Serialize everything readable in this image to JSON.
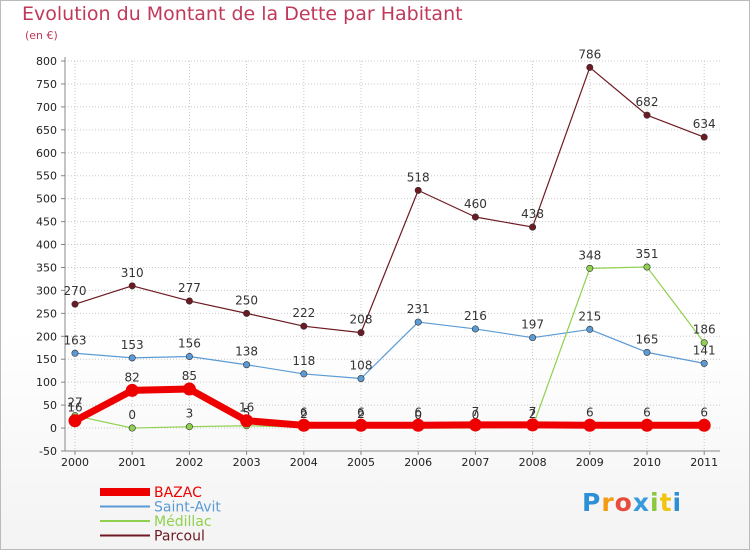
{
  "title": "Evolution du Montant de la Dette par Habitant",
  "subtitle": "(en €)",
  "logo": "Proxiti",
  "colors": {
    "title": "#c0395a",
    "grid": "#c8c8c8",
    "axis": "#888888"
  },
  "chart_data": {
    "type": "line",
    "categories": [
      "2000",
      "2001",
      "2002",
      "2003",
      "2004",
      "2005",
      "2006",
      "2007",
      "2008",
      "2009",
      "2010",
      "2011"
    ],
    "ylim": [
      -50,
      800
    ],
    "yticks": [
      -50,
      0,
      50,
      100,
      150,
      200,
      250,
      300,
      350,
      400,
      450,
      500,
      550,
      600,
      650,
      700,
      750,
      800
    ],
    "grid": true,
    "legend_position": "bottom-left",
    "series": [
      {
        "name": "Parcoul",
        "color": "#6e1a22",
        "width": 1.2,
        "values": [
          270,
          310,
          277,
          250,
          222,
          208,
          518,
          460,
          438,
          786,
          682,
          634
        ],
        "labels": [
          "270",
          "310",
          "277",
          "250",
          "222",
          "208",
          "518",
          "460",
          "438",
          "786",
          "682",
          "634"
        ]
      },
      {
        "name": "Saint-Avit",
        "color": "#5b9bd5",
        "width": 1.2,
        "values": [
          163,
          153,
          156,
          138,
          118,
          108,
          231,
          216,
          197,
          215,
          165,
          141
        ],
        "labels": [
          "163",
          "153",
          "156",
          "138",
          "118",
          "108",
          "231",
          "216",
          "197",
          "215",
          "165",
          "141"
        ]
      },
      {
        "name": "Médillac",
        "color": "#8fd14f",
        "width": 1.2,
        "values": [
          27,
          0,
          3,
          5,
          2,
          2,
          0,
          0,
          2,
          348,
          351,
          186
        ],
        "labels": [
          "27",
          "0",
          "3",
          "5",
          "2",
          "2",
          "0",
          "0",
          "2",
          "348",
          "351",
          "186"
        ]
      },
      {
        "name": "BAZAC",
        "color": "#ee0000",
        "width": 7,
        "values": [
          16,
          82,
          85,
          16,
          6,
          6,
          6,
          7,
          7,
          6,
          6,
          6
        ],
        "labels": [
          "16",
          "82",
          "85",
          "16",
          "6",
          "6",
          "6",
          "7",
          "7",
          "6",
          "6",
          "6"
        ]
      }
    ],
    "legend_order": [
      "BAZAC",
      "Saint-Avit",
      "Médillac",
      "Parcoul"
    ]
  }
}
